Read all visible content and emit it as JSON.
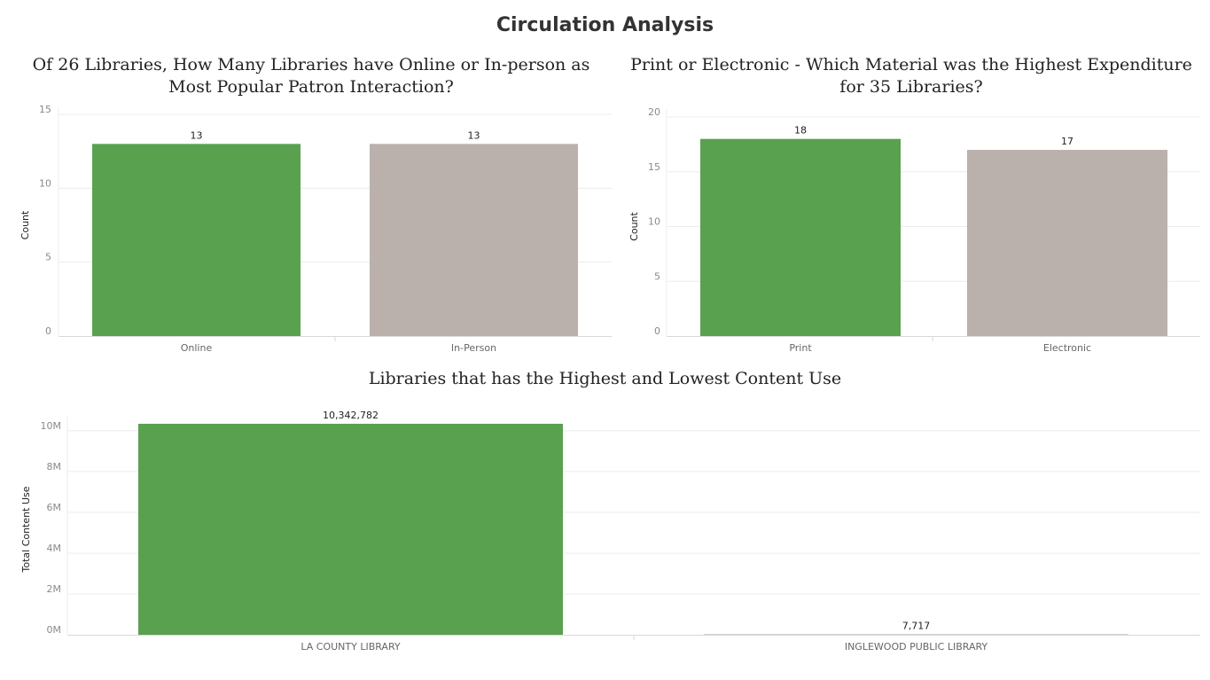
{
  "dashboard": {
    "title": "Circulation Analysis"
  },
  "colors": {
    "primary": "#59a14f",
    "secondary": "#bab0ac",
    "grid": "#ececec",
    "axis": "#d9d9d9"
  },
  "chart_data": [
    {
      "type": "bar",
      "title": "Of 26 Libraries, How Many Libraries have Online or In-person as Most Popular Patron Interaction?",
      "categories": [
        "Online",
        "In-Person"
      ],
      "values": [
        13,
        13
      ],
      "value_labels": [
        "13",
        "13"
      ],
      "ylabel": "Count",
      "ylim": [
        0,
        15
      ],
      "yticks": [
        0,
        5,
        10,
        15
      ],
      "ytick_labels": [
        "0",
        "5",
        "10",
        "15"
      ],
      "grid": true
    },
    {
      "type": "bar",
      "title": "Print or Electronic - Which Material was the Highest Expenditure for 35 Libraries?",
      "categories": [
        "Print",
        "Electronic"
      ],
      "values": [
        18,
        17
      ],
      "value_labels": [
        "18",
        "17"
      ],
      "ylabel": "Count",
      "ylim": [
        0,
        20
      ],
      "yticks": [
        0,
        5,
        10,
        15,
        20
      ],
      "ytick_labels": [
        "0",
        "5",
        "10",
        "15",
        "20"
      ],
      "grid": true
    },
    {
      "type": "bar",
      "title": "Libraries that has the Highest and Lowest Content Use",
      "categories": [
        "LA COUNTY LIBRARY",
        "INGLEWOOD PUBLIC LIBRARY"
      ],
      "values": [
        10342782,
        7717
      ],
      "value_labels": [
        "10,342,782",
        "7,717"
      ],
      "ylabel": "Total Content Use",
      "ylim": [
        0,
        10342782
      ],
      "yticks": [
        0,
        2000000,
        4000000,
        6000000,
        8000000,
        10000000
      ],
      "ytick_labels": [
        "0M",
        "2M",
        "4M",
        "6M",
        "8M",
        "10M"
      ],
      "grid": true
    }
  ]
}
